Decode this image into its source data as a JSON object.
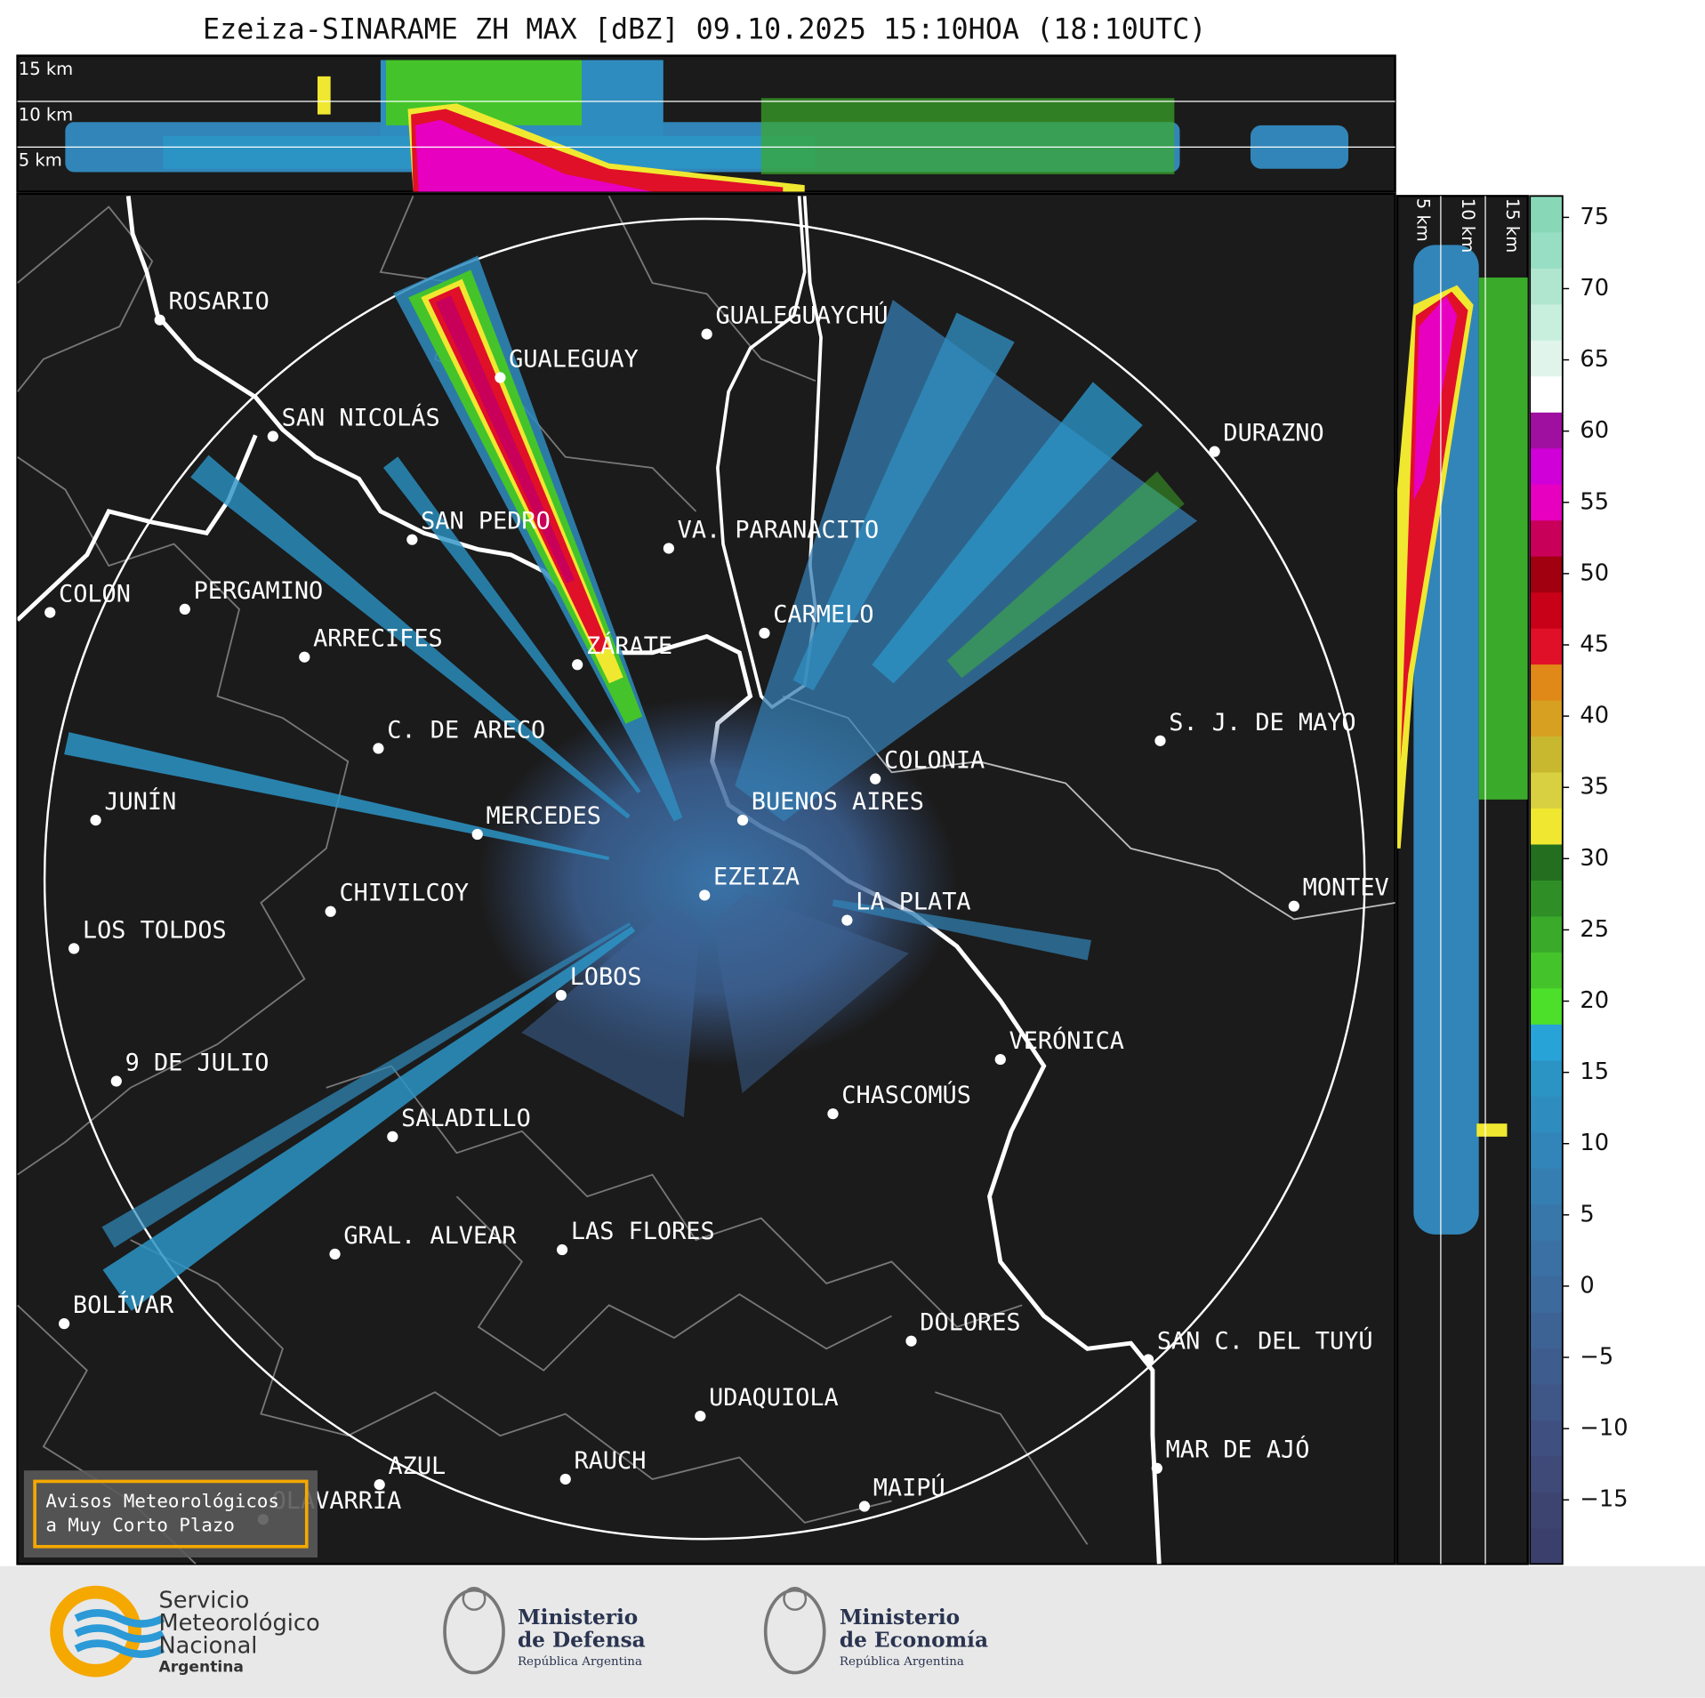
{
  "title": "Ezeiza-SINARAME ZH MAX [dBZ] 09.10.2025 15:10HOA (18:10UTC)",
  "height_labels": [
    "15 km",
    "10 km",
    "5 km"
  ],
  "cities": [
    "ROSARIO",
    "GUALEGUAYCHÚ",
    "GUALEGUAY",
    "SAN NICOLÁS",
    "DURAZNO",
    "SAN PEDRO",
    "VA. PARANACITO",
    "COLON",
    "PERGAMINO",
    "CARMELO",
    "ARRECIFES",
    "ZÁRATE",
    "S. J. DE MAYO",
    "C. DE ARECO",
    "COLONIA",
    "BUENOS AIRES",
    "JUNÍN",
    "MERCEDES",
    "MONTEV",
    "EZEIZA",
    "CHIVILCOY",
    "LA PLATA",
    "LOS TOLDOS",
    "LOBOS",
    "VERÓNICA",
    "9 DE JULIO",
    "CHASCOMÚS",
    "SALADILLO",
    "LAS FLORES",
    "GRAL. ALVEAR",
    "BOLÍVAR",
    "DOLORES",
    "SAN C. DEL TUYÚ",
    "UDAQUIOLA",
    "MAR DE AJÓ",
    "AZUL",
    "RAUCH",
    "OLAVARRÍA",
    "MAIPÚ"
  ],
  "colorbar": {
    "lim": [
      -19.5,
      76.5
    ],
    "ticks": [
      {
        "value": -15,
        "label": "−15"
      },
      {
        "value": -10,
        "label": "−10"
      },
      {
        "value": -5,
        "label": "−5"
      },
      0,
      5,
      10,
      15,
      20,
      25,
      30,
      35,
      40,
      45,
      50,
      55,
      60,
      65,
      70,
      75
    ],
    "colors": [
      "#3b3f6b",
      "#3d4470",
      "#3f4a78",
      "#3f5080",
      "#3f5787",
      "#3e5d8e",
      "#3d6395",
      "#3c6a9c",
      "#3a70a3",
      "#3877aa",
      "#357eb1",
      "#3285b8",
      "#2f8cbe",
      "#2b94c5",
      "#28a3d8",
      "#4de02a",
      "#44c42a",
      "#3aaa2a",
      "#2f8f26",
      "#236f1f",
      "#f0e830",
      "#d8d040",
      "#c8b830",
      "#d8a020",
      "#e08818",
      "#e01028",
      "#c80018",
      "#a00010",
      "#c8005a",
      "#e800c0",
      "#d000d8",
      "#a010a0",
      "#ffffff",
      "#e0f4ec",
      "#c8eede",
      "#b0e6d0",
      "#98dec4",
      "#88d8b8"
    ]
  },
  "warning": [
    "Avisos Meteorológicos",
    "a Muy Corto Plazo"
  ],
  "logos": {
    "smn": [
      "Servicio",
      "Meteorológico",
      "Nacional",
      "Argentina"
    ],
    "defensa": [
      "Ministerio",
      "de Defensa",
      "República Argentina"
    ],
    "economia": [
      "Ministerio",
      "de Economía",
      "República Argentina"
    ]
  }
}
